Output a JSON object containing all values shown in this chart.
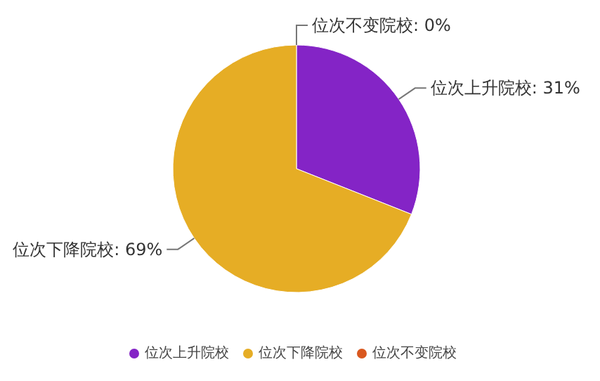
{
  "chart_data": {
    "type": "pie",
    "categories": [
      "位次上升院校",
      "位次下降院校",
      "位次不变院校"
    ],
    "values": [
      31,
      69,
      0
    ],
    "colors": [
      "#8424c6",
      "#e6ad25",
      "#d9581f"
    ],
    "value_labels": [
      "位次上升院校: 31%",
      "位次下降院校: 69%",
      "位次不变院校: 0%"
    ],
    "legend": "bottom"
  }
}
